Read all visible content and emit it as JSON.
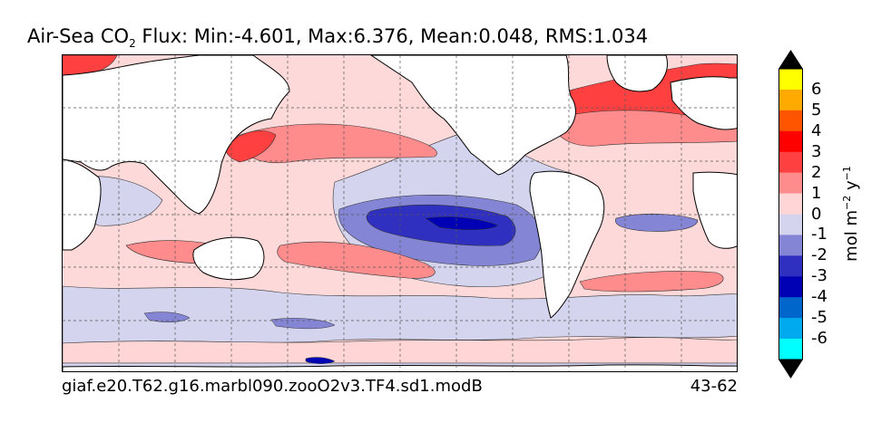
{
  "title": {
    "prefix": "Air-Sea CO",
    "subscript": "2",
    "suffix": " Flux: Min:-4.601, Max:6.376, Mean:0.048, RMS:1.034"
  },
  "footer": {
    "case_name": "giaf.e20.T62.g16.marbl090.zooO2v3.TF4.sd1.modB",
    "years": "43-62"
  },
  "colorbar": {
    "units_prefix": "mol m",
    "units_exp1": "−2",
    "units_mid": " y",
    "units_exp2": "−1",
    "ticks": [
      "6",
      "5",
      "4",
      "3",
      "2",
      "1",
      "0",
      "-1",
      "-2",
      "-3",
      "-4",
      "-5",
      "-6"
    ],
    "level_colors": [
      "#ffff00",
      "#ffaa00",
      "#ff5500",
      "#ff0000",
      "#ff4040",
      "#ff8c8c",
      "#ffd5d5",
      "#d4d4ef",
      "#8585d6",
      "#3030c0",
      "#0000b4",
      "#0066cc",
      "#00aaee",
      "#00ffff"
    ],
    "over_color": "#000000",
    "under_color": "#000000"
  },
  "map": {
    "land_color": "#ffffff",
    "ocean_base_color": "#fdd9d9"
  }
}
